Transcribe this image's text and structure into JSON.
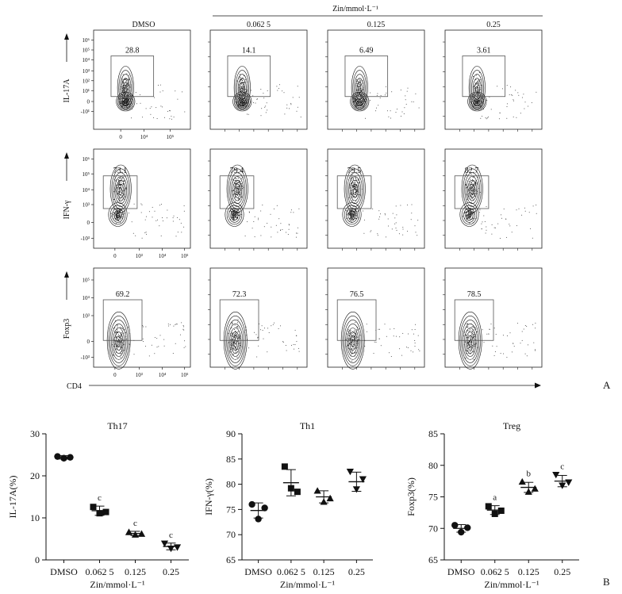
{
  "panel_labels": {
    "a": "A",
    "b": "B"
  },
  "flow": {
    "column_titles": [
      "DMSO",
      "0.062 5",
      "0.125",
      "0.25"
    ],
    "treatment_header": "Zin/mmol·L⁻¹",
    "x_axis_label": "CD4",
    "rows": [
      {
        "ylabel": "IL-17A",
        "yticks": [
          "10⁶",
          "10⁵",
          "10⁴",
          "10³",
          "10²",
          "10¹",
          "0",
          "-10¹"
        ],
        "xticks": [
          "0",
          "10⁴",
          "10⁵"
        ],
        "gate_values": [
          "28.8",
          "14.1",
          "6.49",
          "3.61"
        ]
      },
      {
        "ylabel": "IFN-γ",
        "yticks": [
          "10⁶",
          "10⁵",
          "10⁴",
          "10³",
          "0",
          "-10³"
        ],
        "xticks": [
          "0",
          "10³",
          "10⁴",
          "10⁵"
        ],
        "gate_values": [
          "73.1",
          "79.4",
          "79.5",
          "82.7"
        ]
      },
      {
        "ylabel": "Foxp3",
        "yticks": [
          "10⁵",
          "10⁴",
          "10³",
          "0",
          "-10³"
        ],
        "xticks": [
          "0",
          "10³",
          "10⁴",
          "10⁵"
        ],
        "gate_values": [
          "69.2",
          "72.3",
          "76.5",
          "78.5"
        ]
      }
    ]
  },
  "chart_data": [
    {
      "type": "scatter",
      "title": "Th17",
      "xlabel": "Zin/mmol·L⁻¹",
      "ylabel": "IL-17A(%)",
      "categories": [
        "DMSO",
        "0.062 5",
        "0.125",
        "0.25"
      ],
      "ylim": [
        0,
        30
      ],
      "yticks": [
        0,
        10,
        20,
        30
      ],
      "markers": [
        "circle",
        "square",
        "triangle-up",
        "triangle-down"
      ],
      "points": [
        [
          24.6,
          24.2,
          24.4
        ],
        [
          12.6,
          11.1,
          11.4
        ],
        [
          6.6,
          6.0,
          6.2
        ],
        [
          3.9,
          2.7,
          3.0
        ]
      ],
      "means": [
        24.4,
        11.7,
        6.3,
        3.2
      ],
      "errors": [
        0.4,
        1.1,
        0.5,
        0.8
      ],
      "significance": [
        "",
        "c",
        "c",
        "c"
      ]
    },
    {
      "type": "scatter",
      "title": "Th1",
      "xlabel": "Zin/mmol·L⁻¹",
      "ylabel": "IFN-γ(%)",
      "categories": [
        "DMSO",
        "0.062 5",
        "0.125",
        "0.25"
      ],
      "ylim": [
        65,
        90
      ],
      "yticks": [
        65,
        70,
        75,
        80,
        85,
        90
      ],
      "markers": [
        "circle",
        "square",
        "triangle-up",
        "triangle-down"
      ],
      "points": [
        [
          76.0,
          73.1,
          75.3
        ],
        [
          83.5,
          79.2,
          78.5
        ],
        [
          78.7,
          76.5,
          77.2
        ],
        [
          82.5,
          79.0,
          81.0
        ]
      ],
      "means": [
        74.8,
        80.3,
        77.5,
        80.5
      ],
      "errors": [
        1.5,
        2.6,
        1.2,
        1.9
      ],
      "significance": [
        "",
        "",
        "",
        ""
      ]
    },
    {
      "type": "scatter",
      "title": "Treg",
      "xlabel": "Zin/mmol·L⁻¹",
      "ylabel": "Foxp3(%)",
      "categories": [
        "DMSO",
        "0.062 5",
        "0.125",
        "0.25"
      ],
      "ylim": [
        65,
        85
      ],
      "yticks": [
        65,
        70,
        75,
        80,
        85
      ],
      "markers": [
        "circle",
        "square",
        "triangle-up",
        "triangle-down"
      ],
      "points": [
        [
          70.5,
          69.4,
          70.1
        ],
        [
          73.5,
          72.3,
          72.8
        ],
        [
          77.4,
          75.8,
          76.3
        ],
        [
          78.5,
          76.8,
          77.3
        ]
      ],
      "means": [
        70.0,
        72.9,
        76.5,
        77.5
      ],
      "errors": [
        0.6,
        0.7,
        0.8,
        0.9
      ],
      "significance": [
        "",
        "a",
        "b",
        "c"
      ]
    }
  ]
}
